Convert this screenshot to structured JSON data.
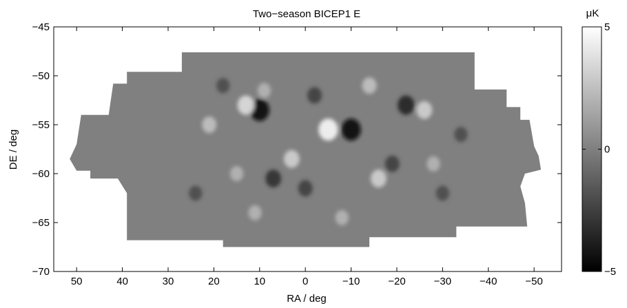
{
  "chart_data": {
    "type": "heatmap",
    "title": "Two−season BICEP1 E",
    "xlabel": "RA / deg",
    "ylabel": "DE / deg",
    "xlim": [
      55,
      -56
    ],
    "ylim": [
      -70,
      -45
    ],
    "x_ticks": [
      50,
      40,
      30,
      20,
      10,
      0,
      -10,
      -20,
      -30,
      -40,
      -50
    ],
    "x_tick_labels": [
      "50",
      "40",
      "30",
      "20",
      "10",
      "0",
      "−10",
      "−20",
      "−30",
      "−40",
      "−50"
    ],
    "y_ticks": [
      -45,
      -50,
      -55,
      -60,
      -65,
      -70
    ],
    "y_tick_labels": [
      "−45",
      "−50",
      "−55",
      "−60",
      "−65",
      "−70"
    ],
    "colormap": "gray",
    "colorbar": {
      "unit": "μK",
      "range": [
        -5,
        5
      ],
      "ticks": [
        5,
        0,
        -5
      ],
      "tick_labels": [
        "5",
        "0",
        "−5"
      ]
    },
    "colors": {
      "axes": "#000000",
      "background": "#ffffff",
      "map_mean": "#808080"
    },
    "features": [
      {
        "ra": 10,
        "de": -53.5,
        "value": -4.5
      },
      {
        "ra": 13,
        "de": -53,
        "value": 3.5
      },
      {
        "ra": -10,
        "de": -55.5,
        "value": -4.5
      },
      {
        "ra": -5,
        "de": -55.5,
        "value": 4.5
      },
      {
        "ra": -22,
        "de": -53,
        "value": -3.5
      },
      {
        "ra": -26,
        "de": -53.5,
        "value": 3
      },
      {
        "ra": 3,
        "de": -58.5,
        "value": 3
      },
      {
        "ra": 7,
        "de": -60.5,
        "value": -3
      },
      {
        "ra": -16,
        "de": -60.5,
        "value": 3
      },
      {
        "ra": -19,
        "de": -59,
        "value": -2.5
      },
      {
        "ra": 21,
        "de": -55,
        "value": 2.5
      },
      {
        "ra": -2,
        "de": -52,
        "value": -2.5
      },
      {
        "ra": 9,
        "de": -51.5,
        "value": 2
      },
      {
        "ra": -14,
        "de": -51,
        "value": 2.5
      },
      {
        "ra": 0,
        "de": -61.5,
        "value": -2.5
      },
      {
        "ra": 15,
        "de": -60,
        "value": 2
      },
      {
        "ra": -28,
        "de": -59,
        "value": 2
      },
      {
        "ra": -30,
        "de": -62,
        "value": -2
      },
      {
        "ra": 24,
        "de": -62,
        "value": -2
      },
      {
        "ra": 11,
        "de": -64,
        "value": 2
      },
      {
        "ra": -8,
        "de": -64.5,
        "value": 2
      },
      {
        "ra": 18,
        "de": -51,
        "value": -2
      },
      {
        "ra": -34,
        "de": -56,
        "value": -2
      }
    ]
  }
}
